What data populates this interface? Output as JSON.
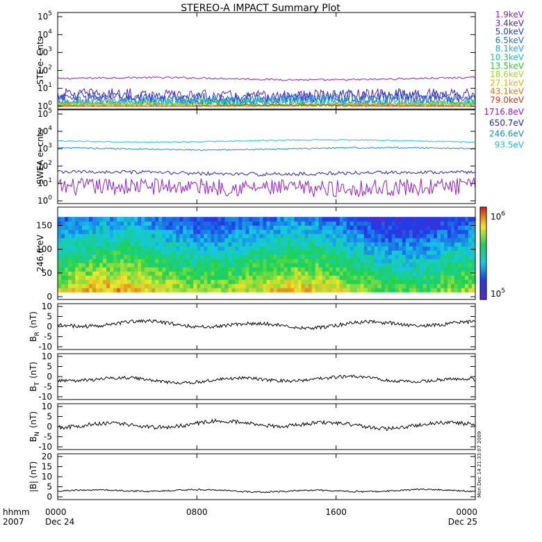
{
  "chart_data": [
    {
      "type": "line",
      "title": "STEREO-A IMPACT Summary Plot",
      "panel": "ste",
      "ylabel": "STE e- Cnts",
      "yscale": "log",
      "ylim": [
        1,
        100000
      ],
      "ytick_exponents": [
        "0",
        "1",
        "2",
        "3",
        "4",
        "5"
      ],
      "series": [
        {
          "name": "1.9keV",
          "color": "#8c1fd6",
          "level": 35,
          "noise": 0.05
        },
        {
          "name": "3.4keV",
          "color": "#4b1fd6",
          "level": 4,
          "noise": 0.35
        },
        {
          "name": "5.0keV",
          "color": "#1f3cd6",
          "level": 3,
          "noise": 0.35
        },
        {
          "name": "6.5keV",
          "color": "#1f74d6",
          "level": 2.2,
          "noise": 0.3
        },
        {
          "name": "8.1keV",
          "color": "#16b4d2",
          "level": 1.8,
          "noise": 0.25
        },
        {
          "name": "10.3keV",
          "color": "#12c9a0",
          "level": 1.5,
          "noise": 0.2
        },
        {
          "name": "13.5keV",
          "color": "#2ecf2e",
          "level": 1.3,
          "noise": 0.15
        },
        {
          "name": "18.6keV",
          "color": "#a8d61b",
          "level": 1.2,
          "noise": 0.1
        },
        {
          "name": "27.1keV",
          "color": "#e0b810",
          "level": 1.1,
          "noise": 0.1
        },
        {
          "name": "43.1keV",
          "color": "#e07a10",
          "level": 1.05,
          "noise": 0.08
        },
        {
          "name": "79.0keV",
          "color": "#d63a10",
          "level": 1.02,
          "noise": 0.05
        }
      ]
    },
    {
      "type": "line",
      "panel": "swea",
      "ylabel": "SWEA e- cnts",
      "yscale": "log",
      "ylim": [
        1,
        100000
      ],
      "ytick_exponents": [
        "0",
        "1",
        "2",
        "3",
        "4",
        "5"
      ],
      "series": [
        {
          "name": "1716.8eV",
          "color": "#8c1fd6",
          "level": 6,
          "noise": 0.5
        },
        {
          "name": "650.7eV",
          "color": "#1f1fd6",
          "level": 40,
          "noise": 0.1
        },
        {
          "name": "246.6eV",
          "color": "#1f8ad6",
          "level": 1000,
          "noise": 0.04
        },
        {
          "name": "93.5eV",
          "color": "#16c4d2",
          "level": 2800,
          "noise": 0.03
        }
      ]
    },
    {
      "type": "heatmap",
      "panel": "pad",
      "ylabel": "246.6 eV",
      "ylim": [
        0,
        180
      ],
      "yticks": [
        "0",
        "50",
        "100",
        "150"
      ],
      "colorbar": {
        "min_label": "10",
        "min_exp": "5",
        "max_label": "10",
        "max_exp": "6"
      }
    },
    {
      "type": "line",
      "panel": "br",
      "ylabel_main": "B",
      "ylabel_sub": "R",
      "ylabel_unit": "(nT)",
      "ylim": [
        -10,
        10
      ],
      "yticks": [
        "10",
        "5",
        "0",
        "-5",
        "-10"
      ],
      "series": [
        {
          "color": "#000000",
          "mean": 1,
          "amp": 2
        }
      ]
    },
    {
      "type": "line",
      "panel": "bt",
      "ylabel_main": "B",
      "ylabel_sub": "T",
      "ylabel_unit": "(nT)",
      "ylim": [
        -10,
        10
      ],
      "yticks": [
        "10",
        "5",
        "0",
        "-5",
        "-10"
      ],
      "series": [
        {
          "color": "#000000",
          "mean": -1.5,
          "amp": 1.8
        }
      ]
    },
    {
      "type": "line",
      "panel": "bn",
      "ylabel_main": "B",
      "ylabel_sub": "N",
      "ylabel_unit": "(nT)",
      "ylim": [
        -10,
        10
      ],
      "yticks": [
        "10",
        "5",
        "0",
        "-5",
        "-10"
      ],
      "series": [
        {
          "color": "#000000",
          "mean": 1,
          "amp": 2.2
        }
      ]
    },
    {
      "type": "line",
      "panel": "bmag",
      "ylabel": "|B| (nT)",
      "ylim": [
        0,
        20
      ],
      "yticks": [
        "20",
        "15",
        "10",
        "5",
        "0"
      ],
      "series": [
        {
          "color": "#000000",
          "mean": 3,
          "amp": 0.8
        }
      ]
    }
  ],
  "x_axis": {
    "corner_labels": [
      "hhmm",
      "2007"
    ],
    "ticks": [
      {
        "time": "0000",
        "date": "Dec 24"
      },
      {
        "time": "0800",
        "date": ""
      },
      {
        "time": "1600",
        "date": ""
      },
      {
        "time": "0000",
        "date": "Dec 25"
      }
    ]
  },
  "timestamp": "Mon Dec 14 21:33:07 2009"
}
